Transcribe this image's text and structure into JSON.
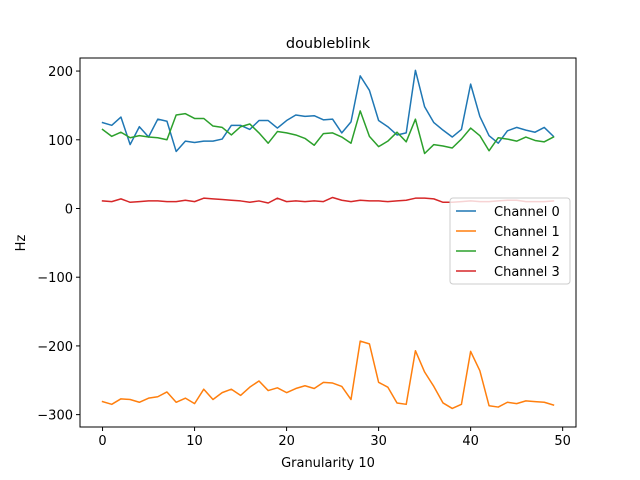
{
  "chart_data": {
    "type": "line",
    "title": "doubleblink",
    "xlabel": "Granularity 10",
    "ylabel": "Hz",
    "xlim": [
      -2.45,
      51.45
    ],
    "ylim": [
      -318,
      219
    ],
    "xticks": [
      0,
      10,
      20,
      30,
      40,
      50
    ],
    "yticks": [
      -300,
      -200,
      -100,
      0,
      100,
      200
    ],
    "ytick_labels": [
      "−300",
      "−200",
      "−100",
      "0",
      "100",
      "200"
    ],
    "grid": false,
    "legend_position": "center right",
    "x": [
      0,
      1,
      2,
      3,
      4,
      5,
      6,
      7,
      8,
      9,
      10,
      11,
      12,
      13,
      14,
      15,
      16,
      17,
      18,
      19,
      20,
      21,
      22,
      23,
      24,
      25,
      26,
      27,
      28,
      29,
      30,
      31,
      32,
      33,
      34,
      35,
      36,
      37,
      38,
      39,
      40,
      41,
      42,
      43,
      44,
      45,
      46,
      47,
      48,
      49
    ],
    "series": [
      {
        "name": "Channel 0",
        "color": "#1f77b4",
        "values": [
          125,
          121,
          133,
          93,
          119,
          104,
          130,
          127,
          83,
          98,
          96,
          98,
          98,
          101,
          121,
          121,
          115,
          128,
          128,
          117,
          128,
          136,
          134,
          135,
          129,
          130,
          110,
          126,
          193,
          172,
          128,
          119,
          107,
          110,
          201,
          148,
          125,
          114,
          104,
          115,
          181,
          134,
          106,
          95,
          113,
          118,
          114,
          111,
          118,
          105
        ]
      },
      {
        "name": "Channel 1",
        "color": "#ff7f0e",
        "values": [
          -281,
          -285,
          -277,
          -278,
          -282,
          -276,
          -274,
          -267,
          -282,
          -276,
          -284,
          -263,
          -278,
          -268,
          -263,
          -272,
          -260,
          -251,
          -265,
          -261,
          -268,
          -262,
          -258,
          -262,
          -253,
          -254,
          -259,
          -278,
          -193,
          -197,
          -253,
          -260,
          -283,
          -285,
          -207,
          -238,
          -259,
          -283,
          -291,
          -285,
          -208,
          -236,
          -287,
          -289,
          -282,
          -284,
          -280,
          -281,
          -282,
          -286
        ]
      },
      {
        "name": "Channel 2",
        "color": "#2ca02c",
        "values": [
          115,
          105,
          111,
          103,
          106,
          104,
          103,
          100,
          136,
          138,
          131,
          131,
          120,
          118,
          107,
          119,
          123,
          110,
          95,
          112,
          110,
          107,
          102,
          92,
          109,
          110,
          104,
          95,
          142,
          105,
          90,
          98,
          111,
          97,
          130,
          80,
          93,
          91,
          88,
          101,
          117,
          106,
          84,
          103,
          101,
          98,
          104,
          99,
          97,
          104
        ]
      },
      {
        "name": "Channel 3",
        "color": "#d62728",
        "values": [
          11,
          10,
          14,
          9,
          10,
          11,
          11,
          10,
          10,
          12,
          10,
          15,
          14,
          13,
          12,
          11,
          9,
          11,
          8,
          15,
          10,
          11,
          10,
          11,
          10,
          16,
          12,
          10,
          12,
          11,
          11,
          10,
          11,
          12,
          15,
          15,
          14,
          9,
          9,
          10,
          11,
          10,
          10,
          11,
          12,
          12,
          10,
          10,
          10,
          11
        ]
      }
    ]
  }
}
